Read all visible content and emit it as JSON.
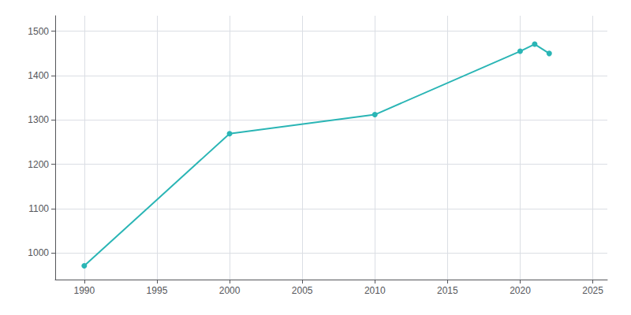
{
  "chart_data": {
    "type": "line",
    "x": [
      1990,
      2000,
      2010,
      2020,
      2021,
      2022
    ],
    "values": [
      971,
      1269,
      1312,
      1455,
      1471,
      1450
    ],
    "color": "#2AB5B5",
    "marker": "circle",
    "xlim": [
      1988,
      2026
    ],
    "xticks": [
      1990,
      1995,
      2000,
      2005,
      2010,
      2015,
      2020,
      2025
    ],
    "ylim": [
      940,
      1535
    ],
    "yticks": [
      1000,
      1100,
      1200,
      1300,
      1400,
      1500
    ],
    "grid": true
  }
}
